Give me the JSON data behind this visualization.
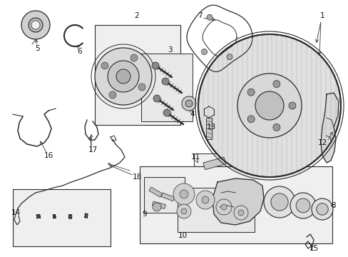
{
  "bg_color": "#ffffff",
  "fig_width": 4.89,
  "fig_height": 3.6,
  "dpi": 100,
  "lc": "#2a2a2a",
  "fc_light": "#e8e8e8",
  "fc_mid": "#cccccc",
  "fc_dark": "#aaaaaa"
}
